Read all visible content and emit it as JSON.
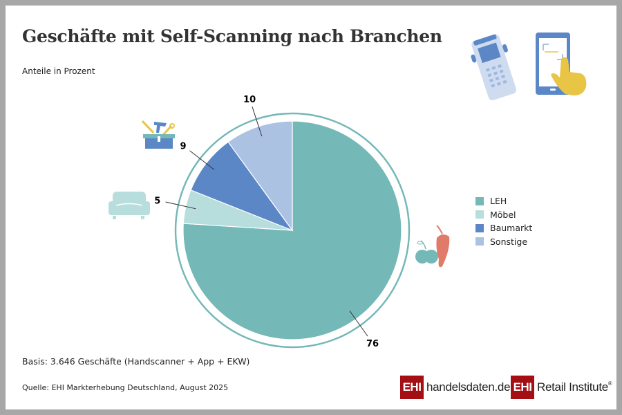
{
  "title": "Geschäfte mit Self-Scanning nach Branchen",
  "subtitle": "Anteile in Prozent",
  "basis": "Basis: 3.646 Geschäfte (Handscanner + App + EKW)",
  "source": "Quelle: EHI Markterhebung Deutschland, August 2025",
  "logos": {
    "ehi": "EHI",
    "handelsdaten": "handelsdaten.de",
    "retail": "Retail Institute",
    "reg": "®"
  },
  "icons": [
    "handheld-scanner-icon",
    "smartphone-tap-icon",
    "toolbox-icon",
    "sofa-icon",
    "apple-pepper-icon"
  ],
  "chart_data": {
    "type": "pie",
    "title": "Geschäfte mit Self-Scanning nach Branchen",
    "subtitle": "Anteile in Prozent",
    "start": "top, clockwise",
    "legend_position": "right",
    "slices": [
      {
        "name": "LEH",
        "value": 76,
        "color": "#74b8b7"
      },
      {
        "name": "Möbel",
        "value": 5,
        "color": "#b8dddd"
      },
      {
        "name": "Baumarkt",
        "value": 9,
        "color": "#5b87c7"
      },
      {
        "name": "Sonstige",
        "value": 10,
        "color": "#abc2e3"
      }
    ]
  }
}
